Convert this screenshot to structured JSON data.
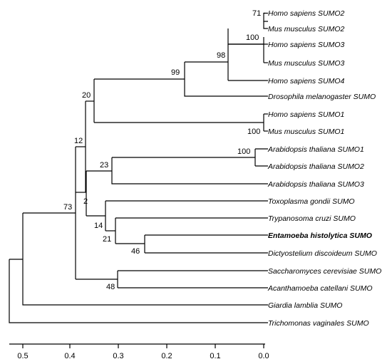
{
  "tree": {
    "taxa": [
      {
        "label": "Homo sapiens SUMO2",
        "bold": false
      },
      {
        "label": "Mus musculus SUMO2",
        "bold": false
      },
      {
        "label": "Homo sapiens SUMO3",
        "bold": false
      },
      {
        "label": "Mus musculus SUMO3",
        "bold": false
      },
      {
        "label": "Homo sapiens SUMO4",
        "bold": false
      },
      {
        "label": "Drosophila melanogaster SUMO",
        "bold": false
      },
      {
        "label": "Homo sapiens SUMO1",
        "bold": false
      },
      {
        "label": "Mus musculus SUMO1",
        "bold": false
      },
      {
        "label": "Arabidopsis thaliana SUMO1",
        "bold": false
      },
      {
        "label": "Arabidopsis thaliana SUMO2",
        "bold": false
      },
      {
        "label": "Arabidopsis thaliana SUMO3",
        "bold": false
      },
      {
        "label": "Toxoplasma gondii SUMO",
        "bold": false
      },
      {
        "label": "Trypanosoma cruzi SUMO",
        "bold": false
      },
      {
        "label": "Entamoeba histolytica SUMO",
        "bold": true
      },
      {
        "label": "Dictyostelium discoideum SUMO",
        "bold": false
      },
      {
        "label": "Saccharomyces cerevisiae SUMO",
        "bold": false
      },
      {
        "label": "Acanthamoeba catellani SUMO",
        "bold": false
      },
      {
        "label": "Giardia lamblia SUMO",
        "bold": false
      },
      {
        "label": "Trichomonas vaginales SUMO",
        "bold": false
      }
    ],
    "bootstrap": [
      "71",
      "100",
      "98",
      "99",
      "20",
      "100",
      "12",
      "100",
      "23",
      "2",
      "73",
      "14",
      "21",
      "46",
      "48"
    ],
    "axis_ticks": [
      "0.5",
      "0.4",
      "0.3",
      "0.2",
      "0.1",
      "0.0"
    ]
  }
}
